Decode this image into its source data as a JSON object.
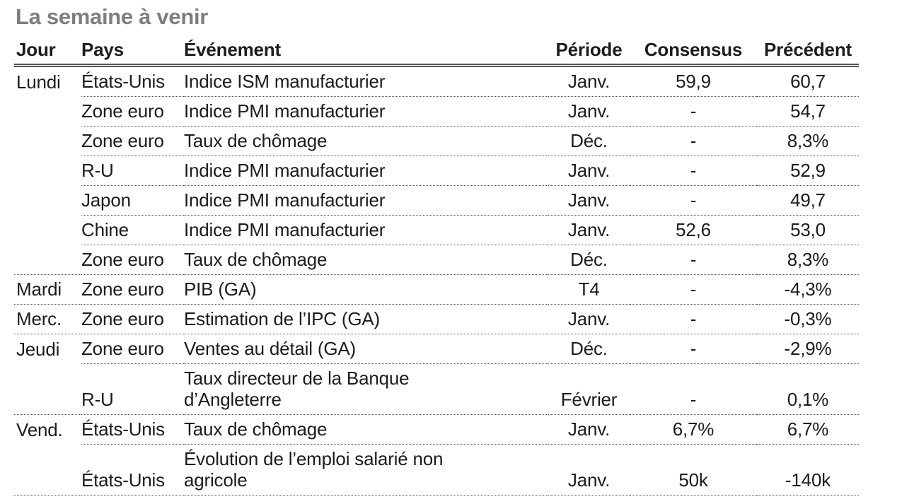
{
  "title": "La semaine à venir",
  "colors": {
    "background": "#ffffff",
    "text": "#1c1c1c",
    "title_gray": "#7e7e7e",
    "rule_gray": "#555555",
    "dotted_gray": "#555555"
  },
  "table": {
    "columns": [
      "Jour",
      "Pays",
      "Événement",
      "Période",
      "Consensus",
      "Précédent"
    ],
    "rows": [
      {
        "day": "Lundi",
        "country": "États-Unis",
        "event": "Indice ISM manufacturier",
        "period": "Janv.",
        "consensus": "59,9",
        "previous": "60,7",
        "sep": "partial"
      },
      {
        "day": "",
        "country": "Zone euro",
        "event": "Indice PMI manufacturier",
        "period": "Janv.",
        "consensus": "-",
        "previous": "54,7",
        "sep": "partial"
      },
      {
        "day": "",
        "country": "Zone euro",
        "event": "Taux de chômage",
        "period": "Déc.",
        "consensus": "-",
        "previous": "8,3%",
        "sep": "partial"
      },
      {
        "day": "",
        "country": "R-U",
        "event": "Indice PMI manufacturier",
        "period": "Janv.",
        "consensus": "-",
        "previous": "52,9",
        "sep": "partial"
      },
      {
        "day": "",
        "country": "Japon",
        "event": "Indice PMI manufacturier",
        "period": "Janv.",
        "consensus": "-",
        "previous": "49,7",
        "sep": "partial"
      },
      {
        "day": "",
        "country": "Chine",
        "event": "Indice PMI manufacturier",
        "period": "Janv.",
        "consensus": "52,6",
        "previous": "53,0",
        "sep": "partial"
      },
      {
        "day": "",
        "country": "Zone euro",
        "event": "Taux de chômage",
        "period": "Déc.",
        "consensus": "-",
        "previous": "8,3%",
        "sep": "full"
      },
      {
        "day": "Mardi",
        "country": "Zone euro",
        "event": "PIB (GA)",
        "period": "T4",
        "consensus": "-",
        "previous": "-4,3%",
        "sep": "full"
      },
      {
        "day": "Merc.",
        "country": "Zone euro",
        "event": "Estimation de l’IPC (GA)",
        "period": "Janv.",
        "consensus": "-",
        "previous": "-0,3%",
        "sep": "full"
      },
      {
        "day": "Jeudi",
        "country": "Zone euro",
        "event": "Ventes au détail (GA)",
        "period": "Déc.",
        "consensus": "-",
        "previous": "-2,9%",
        "sep": "partial"
      },
      {
        "day": "",
        "country": "R-U",
        "event": "Taux directeur de la Banque\nd’Angleterre",
        "period": "Février",
        "consensus": "-",
        "previous": "0,1%",
        "sep": "full"
      },
      {
        "day": "Vend.",
        "country": "États-Unis",
        "event": "Taux de chômage",
        "period": "Janv.",
        "consensus": "6,7%",
        "previous": "6,7%",
        "sep": "partial"
      },
      {
        "day": "",
        "country": "États-Unis",
        "event": "Évolution de l’emploi salarié non\nagricole",
        "period": "Janv.",
        "consensus": "50k",
        "previous": "-140k",
        "sep": "full"
      }
    ]
  }
}
